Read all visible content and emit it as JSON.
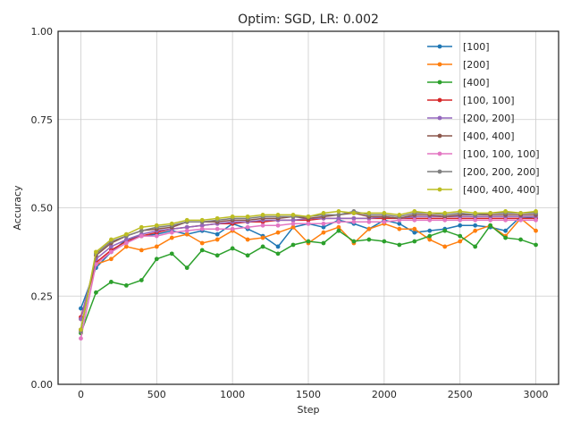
{
  "chart_data": {
    "type": "line",
    "title": "Optim: SGD, LR: 0.002",
    "xlabel": "Step",
    "ylabel": "Accuracy",
    "xlim": [
      -150,
      3150
    ],
    "ylim": [
      0,
      1
    ],
    "xticks": [
      0,
      500,
      1000,
      1500,
      2000,
      2500,
      3000
    ],
    "xtick_labels": [
      "0",
      "500",
      "1000",
      "1500",
      "2000",
      "2500",
      "3000"
    ],
    "yticks": [
      0,
      0.25,
      0.5,
      0.75,
      1.0
    ],
    "ytick_labels": [
      "0.00",
      "0.25",
      "0.50",
      "0.75",
      "1.00"
    ],
    "grid": true,
    "legend_position": "top-right",
    "x": [
      0,
      100,
      200,
      300,
      400,
      500,
      600,
      700,
      800,
      900,
      1000,
      1100,
      1200,
      1300,
      1400,
      1500,
      1600,
      1700,
      1800,
      1900,
      2000,
      2100,
      2200,
      2300,
      2400,
      2500,
      2600,
      2700,
      2800,
      2900,
      3000
    ],
    "series": [
      {
        "name": "[100]",
        "color": "#1f77b4",
        "values": [
          0.215,
          0.33,
          0.375,
          0.41,
          0.42,
          0.425,
          0.435,
          0.425,
          0.435,
          0.425,
          0.455,
          0.44,
          0.42,
          0.39,
          0.445,
          0.455,
          0.445,
          0.465,
          0.455,
          0.44,
          0.465,
          0.455,
          0.43,
          0.435,
          0.44,
          0.45,
          0.45,
          0.445,
          0.435,
          0.475,
          0.47
        ]
      },
      {
        "name": "[200]",
        "color": "#ff7f0e",
        "values": [
          0.185,
          0.34,
          0.355,
          0.39,
          0.38,
          0.39,
          0.415,
          0.425,
          0.4,
          0.41,
          0.435,
          0.41,
          0.415,
          0.43,
          0.445,
          0.4,
          0.43,
          0.445,
          0.4,
          0.44,
          0.455,
          0.44,
          0.44,
          0.41,
          0.39,
          0.405,
          0.435,
          0.45,
          0.42,
          0.47,
          0.435
        ]
      },
      {
        "name": "[400]",
        "color": "#2ca02c",
        "values": [
          0.145,
          0.26,
          0.29,
          0.28,
          0.295,
          0.355,
          0.37,
          0.33,
          0.38,
          0.365,
          0.385,
          0.365,
          0.39,
          0.37,
          0.395,
          0.405,
          0.4,
          0.435,
          0.405,
          0.41,
          0.405,
          0.395,
          0.405,
          0.42,
          0.435,
          0.42,
          0.39,
          0.45,
          0.415,
          0.41,
          0.395
        ]
      },
      {
        "name": "[100, 100]",
        "color": "#d62728",
        "values": [
          0.19,
          0.345,
          0.38,
          0.405,
          0.42,
          0.43,
          0.44,
          0.445,
          0.45,
          0.455,
          0.455,
          0.46,
          0.46,
          0.465,
          0.465,
          0.465,
          0.47,
          0.47,
          0.47,
          0.47,
          0.47,
          0.47,
          0.47,
          0.47,
          0.47,
          0.47,
          0.47,
          0.47,
          0.47,
          0.47,
          0.47
        ]
      },
      {
        "name": "[200, 200]",
        "color": "#9467bd",
        "values": [
          0.185,
          0.355,
          0.39,
          0.41,
          0.425,
          0.435,
          0.44,
          0.445,
          0.45,
          0.455,
          0.46,
          0.46,
          0.465,
          0.465,
          0.465,
          0.47,
          0.47,
          0.47,
          0.47,
          0.47,
          0.475,
          0.47,
          0.475,
          0.475,
          0.475,
          0.475,
          0.475,
          0.475,
          0.475,
          0.475,
          0.475
        ]
      },
      {
        "name": "[400, 400]",
        "color": "#8c564b",
        "values": [
          0.155,
          0.365,
          0.4,
          0.42,
          0.435,
          0.44,
          0.445,
          0.46,
          0.46,
          0.46,
          0.465,
          0.465,
          0.47,
          0.47,
          0.475,
          0.47,
          0.475,
          0.48,
          0.485,
          0.475,
          0.475,
          0.47,
          0.48,
          0.48,
          0.475,
          0.48,
          0.48,
          0.48,
          0.48,
          0.48,
          0.48
        ]
      },
      {
        "name": "[100, 100, 100]",
        "color": "#e377c2",
        "values": [
          0.13,
          0.34,
          0.375,
          0.4,
          0.42,
          0.42,
          0.43,
          0.435,
          0.44,
          0.44,
          0.44,
          0.445,
          0.45,
          0.45,
          0.455,
          0.455,
          0.455,
          0.46,
          0.46,
          0.46,
          0.46,
          0.465,
          0.465,
          0.465,
          0.465,
          0.465,
          0.465,
          0.465,
          0.465,
          0.465,
          0.465
        ]
      },
      {
        "name": "[200, 200, 200]",
        "color": "#7f7f7f",
        "values": [
          0.15,
          0.37,
          0.405,
          0.42,
          0.435,
          0.445,
          0.45,
          0.46,
          0.46,
          0.465,
          0.47,
          0.47,
          0.475,
          0.475,
          0.475,
          0.475,
          0.48,
          0.48,
          0.49,
          0.48,
          0.48,
          0.475,
          0.485,
          0.485,
          0.48,
          0.485,
          0.48,
          0.485,
          0.485,
          0.485,
          0.485
        ]
      },
      {
        "name": "[400, 400, 400]",
        "color": "#bcbd22",
        "values": [
          0.155,
          0.375,
          0.41,
          0.425,
          0.445,
          0.45,
          0.455,
          0.465,
          0.465,
          0.47,
          0.475,
          0.475,
          0.48,
          0.48,
          0.48,
          0.475,
          0.485,
          0.49,
          0.485,
          0.485,
          0.485,
          0.48,
          0.49,
          0.485,
          0.485,
          0.49,
          0.485,
          0.485,
          0.49,
          0.485,
          0.49
        ]
      }
    ]
  }
}
